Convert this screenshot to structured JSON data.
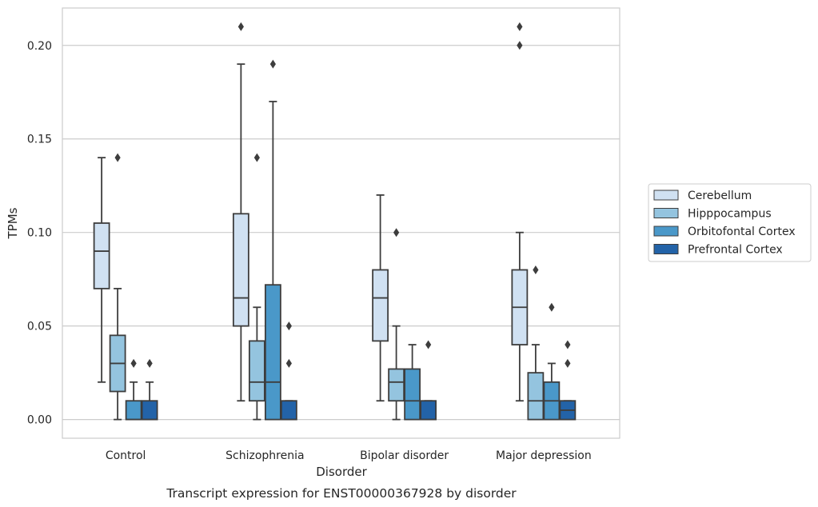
{
  "chart_data": {
    "type": "box",
    "caption": "Transcript expression for ENST00000367928 by disorder",
    "xlabel": "Disorder",
    "ylabel": "TPMs",
    "ylim": [
      -0.01,
      0.22
    ],
    "yticks": [
      "0.00",
      "0.05",
      "0.10",
      "0.15",
      "0.20"
    ],
    "ytick_values": [
      0.0,
      0.05,
      0.1,
      0.15,
      0.2
    ],
    "grid": "horizontal",
    "legend_position": "right",
    "categories": [
      "Control",
      "Schizophrenia",
      "Bipolar disorder",
      "Major depression"
    ],
    "series": [
      {
        "name": "Cerebellum",
        "color": "#d0e1f2",
        "boxes": [
          {
            "lower_whisker": 0.02,
            "q1": 0.07,
            "median": 0.09,
            "q3": 0.105,
            "upper_whisker": 0.14,
            "outliers": []
          },
          {
            "lower_whisker": 0.01,
            "q1": 0.05,
            "median": 0.065,
            "q3": 0.11,
            "upper_whisker": 0.19,
            "outliers": [
              0.21
            ]
          },
          {
            "lower_whisker": 0.01,
            "q1": 0.042,
            "median": 0.065,
            "q3": 0.08,
            "upper_whisker": 0.12,
            "outliers": []
          },
          {
            "lower_whisker": 0.01,
            "q1": 0.04,
            "median": 0.06,
            "q3": 0.08,
            "upper_whisker": 0.1,
            "outliers": [
              0.2,
              0.21
            ]
          }
        ]
      },
      {
        "name": "Hipppocampus",
        "color": "#94c4df",
        "boxes": [
          {
            "lower_whisker": 0.0,
            "q1": 0.015,
            "median": 0.03,
            "q3": 0.045,
            "upper_whisker": 0.07,
            "outliers": [
              0.14
            ]
          },
          {
            "lower_whisker": 0.0,
            "q1": 0.01,
            "median": 0.02,
            "q3": 0.042,
            "upper_whisker": 0.06,
            "outliers": [
              0.14
            ]
          },
          {
            "lower_whisker": 0.0,
            "q1": 0.01,
            "median": 0.02,
            "q3": 0.027,
            "upper_whisker": 0.05,
            "outliers": [
              0.1
            ]
          },
          {
            "lower_whisker": 0.0,
            "q1": 0.0,
            "median": 0.01,
            "q3": 0.025,
            "upper_whisker": 0.04,
            "outliers": [
              0.08
            ]
          }
        ]
      },
      {
        "name": "Orbitofontal Cortex",
        "color": "#4a98c9",
        "boxes": [
          {
            "lower_whisker": 0.0,
            "q1": 0.0,
            "median": 0.0,
            "q3": 0.01,
            "upper_whisker": 0.02,
            "outliers": [
              0.03
            ]
          },
          {
            "lower_whisker": 0.0,
            "q1": 0.0,
            "median": 0.02,
            "q3": 0.072,
            "upper_whisker": 0.17,
            "outliers": [
              0.19
            ]
          },
          {
            "lower_whisker": 0.0,
            "q1": 0.0,
            "median": 0.01,
            "q3": 0.027,
            "upper_whisker": 0.04,
            "outliers": []
          },
          {
            "lower_whisker": 0.0,
            "q1": 0.0,
            "median": 0.01,
            "q3": 0.02,
            "upper_whisker": 0.03,
            "outliers": [
              0.06
            ]
          }
        ]
      },
      {
        "name": "Prefrontal Cortex",
        "color": "#2363a8",
        "boxes": [
          {
            "lower_whisker": 0.0,
            "q1": 0.0,
            "median": 0.0,
            "q3": 0.01,
            "upper_whisker": 0.02,
            "outliers": [
              0.03
            ]
          },
          {
            "lower_whisker": 0.0,
            "q1": 0.0,
            "median": 0.0,
            "q3": 0.01,
            "upper_whisker": 0.01,
            "outliers": [
              0.03,
              0.05
            ]
          },
          {
            "lower_whisker": 0.0,
            "q1": 0.0,
            "median": 0.0,
            "q3": 0.01,
            "upper_whisker": 0.01,
            "outliers": [
              0.04
            ]
          },
          {
            "lower_whisker": 0.0,
            "q1": 0.0,
            "median": 0.005,
            "q3": 0.01,
            "upper_whisker": 0.01,
            "outliers": [
              0.03,
              0.04
            ]
          }
        ]
      }
    ]
  }
}
